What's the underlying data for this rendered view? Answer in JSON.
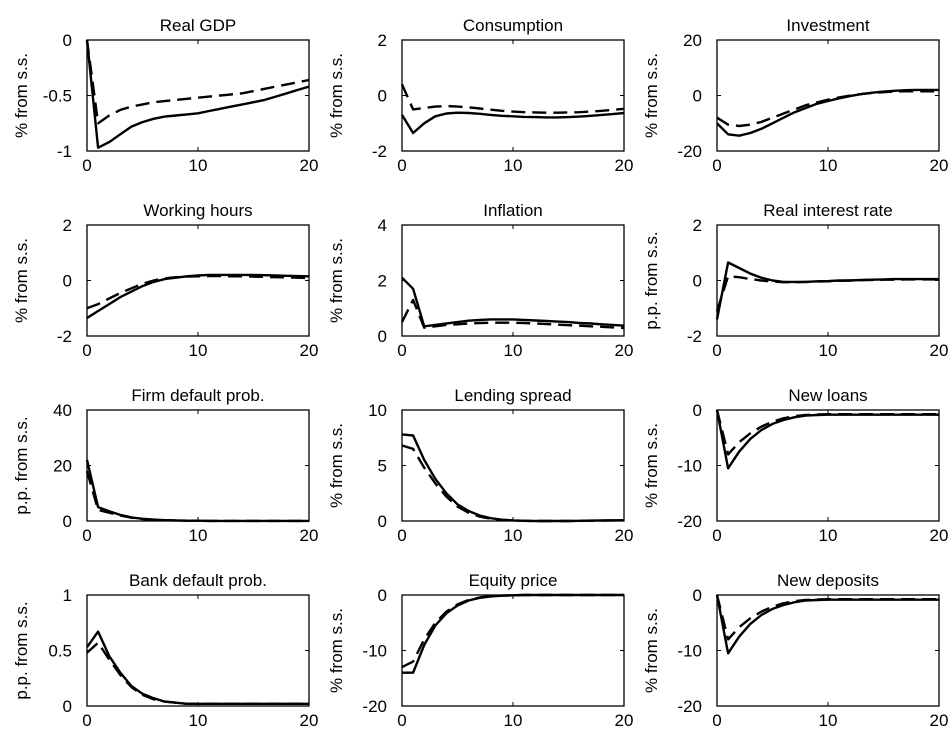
{
  "chart_data": [
    {
      "type": "line",
      "title": "Real GDP",
      "ylabel": "% from s.s.",
      "xlim": [
        0,
        20
      ],
      "ylim": [
        -1,
        0
      ],
      "xticks": [
        0,
        10,
        20
      ],
      "xtick_labels": [
        "0",
        "10",
        "20"
      ],
      "yticks": [
        -1,
        -0.5,
        0
      ],
      "ytick_labels": [
        "-1",
        "-0.5",
        "0"
      ],
      "x": [
        0,
        1,
        2,
        3,
        4,
        5,
        6,
        7,
        8,
        9,
        10,
        11,
        12,
        13,
        14,
        15,
        16,
        17,
        18,
        19,
        20
      ],
      "series": [
        {
          "style": "solid",
          "values": [
            0,
            -0.97,
            -0.92,
            -0.85,
            -0.78,
            -0.74,
            -0.71,
            -0.69,
            -0.68,
            -0.67,
            -0.66,
            -0.64,
            -0.62,
            -0.6,
            -0.58,
            -0.56,
            -0.54,
            -0.51,
            -0.48,
            -0.45,
            -0.42
          ]
        },
        {
          "style": "dashed",
          "values": [
            0,
            -0.75,
            -0.68,
            -0.63,
            -0.6,
            -0.58,
            -0.56,
            -0.55,
            -0.54,
            -0.53,
            -0.52,
            -0.51,
            -0.5,
            -0.49,
            -0.48,
            -0.46,
            -0.44,
            -0.42,
            -0.4,
            -0.38,
            -0.36
          ]
        }
      ]
    },
    {
      "type": "line",
      "title": "Consumption",
      "ylabel": "% from s.s.",
      "xlim": [
        0,
        20
      ],
      "ylim": [
        -2,
        2
      ],
      "xticks": [
        0,
        10,
        20
      ],
      "xtick_labels": [
        "0",
        "10",
        "20"
      ],
      "yticks": [
        -2,
        0,
        2
      ],
      "ytick_labels": [
        "-2",
        "0",
        "2"
      ],
      "x": [
        0,
        1,
        2,
        3,
        4,
        5,
        6,
        7,
        8,
        9,
        10,
        11,
        12,
        13,
        14,
        15,
        16,
        17,
        18,
        19,
        20
      ],
      "series": [
        {
          "style": "solid",
          "values": [
            -0.7,
            -1.35,
            -1.0,
            -0.75,
            -0.65,
            -0.62,
            -0.63,
            -0.66,
            -0.7,
            -0.73,
            -0.75,
            -0.77,
            -0.78,
            -0.79,
            -0.79,
            -0.78,
            -0.76,
            -0.73,
            -0.7,
            -0.67,
            -0.63
          ]
        },
        {
          "style": "dashed",
          "values": [
            0.4,
            -0.5,
            -0.45,
            -0.4,
            -0.38,
            -0.4,
            -0.43,
            -0.47,
            -0.51,
            -0.55,
            -0.58,
            -0.6,
            -0.61,
            -0.62,
            -0.62,
            -0.61,
            -0.6,
            -0.58,
            -0.55,
            -0.52,
            -0.48
          ]
        }
      ]
    },
    {
      "type": "line",
      "title": "Investment",
      "ylabel": "% from s.s.",
      "xlim": [
        0,
        20
      ],
      "ylim": [
        -20,
        20
      ],
      "xticks": [
        0,
        10,
        20
      ],
      "xtick_labels": [
        "0",
        "10",
        "20"
      ],
      "yticks": [
        -20,
        0,
        20
      ],
      "ytick_labels": [
        "-20",
        "0",
        "20"
      ],
      "x": [
        0,
        1,
        2,
        3,
        4,
        5,
        6,
        7,
        8,
        9,
        10,
        11,
        12,
        13,
        14,
        15,
        16,
        17,
        18,
        19,
        20
      ],
      "series": [
        {
          "style": "solid",
          "values": [
            -10,
            -14,
            -14.5,
            -13.5,
            -12,
            -10,
            -8,
            -6,
            -4.5,
            -3,
            -2,
            -1,
            -0.2,
            0.5,
            1,
            1.4,
            1.7,
            1.9,
            2.0,
            2.0,
            2.0
          ]
        },
        {
          "style": "dashed",
          "values": [
            -8,
            -10.5,
            -11,
            -10.5,
            -9.5,
            -8,
            -6.5,
            -5,
            -3.5,
            -2.5,
            -1.5,
            -0.7,
            0,
            0.5,
            0.9,
            1.2,
            1.4,
            1.5,
            1.5,
            1.5,
            1.5
          ]
        }
      ]
    },
    {
      "type": "line",
      "title": "Working hours",
      "ylabel": "% from s.s.",
      "xlim": [
        0,
        20
      ],
      "ylim": [
        -2,
        2
      ],
      "xticks": [
        0,
        10,
        20
      ],
      "xtick_labels": [
        "0",
        "10",
        "20"
      ],
      "yticks": [
        -2,
        0,
        2
      ],
      "ytick_labels": [
        "-2",
        "0",
        "2"
      ],
      "x": [
        0,
        1,
        2,
        3,
        4,
        5,
        6,
        7,
        8,
        9,
        10,
        11,
        12,
        13,
        14,
        15,
        16,
        17,
        18,
        19,
        20
      ],
      "series": [
        {
          "style": "solid",
          "values": [
            -1.35,
            -1.1,
            -0.85,
            -0.6,
            -0.4,
            -0.2,
            -0.05,
            0.05,
            0.1,
            0.15,
            0.18,
            0.2,
            0.2,
            0.2,
            0.2,
            0.2,
            0.19,
            0.18,
            0.17,
            0.16,
            0.15
          ]
        },
        {
          "style": "dashed",
          "values": [
            -1.0,
            -0.85,
            -0.65,
            -0.45,
            -0.28,
            -0.12,
            0,
            0.08,
            0.12,
            0.14,
            0.15,
            0.16,
            0.16,
            0.15,
            0.15,
            0.14,
            0.13,
            0.12,
            0.11,
            0.1,
            0.09
          ]
        }
      ]
    },
    {
      "type": "line",
      "title": "Inflation",
      "ylabel": "% from s.s.",
      "xlim": [
        0,
        20
      ],
      "ylim": [
        0,
        4
      ],
      "xticks": [
        0,
        10,
        20
      ],
      "xtick_labels": [
        "0",
        "10",
        "20"
      ],
      "yticks": [
        0,
        2,
        4
      ],
      "ytick_labels": [
        "0",
        "2",
        "4"
      ],
      "x": [
        0,
        1,
        2,
        3,
        4,
        5,
        6,
        7,
        8,
        9,
        10,
        11,
        12,
        13,
        14,
        15,
        16,
        17,
        18,
        19,
        20
      ],
      "series": [
        {
          "style": "solid",
          "values": [
            2.1,
            1.7,
            0.35,
            0.4,
            0.45,
            0.5,
            0.55,
            0.58,
            0.6,
            0.6,
            0.6,
            0.58,
            0.56,
            0.54,
            0.52,
            0.5,
            0.47,
            0.45,
            0.42,
            0.4,
            0.37
          ]
        },
        {
          "style": "dashed",
          "values": [
            0.5,
            1.3,
            0.3,
            0.35,
            0.4,
            0.42,
            0.45,
            0.47,
            0.48,
            0.48,
            0.48,
            0.47,
            0.45,
            0.43,
            0.41,
            0.39,
            0.37,
            0.35,
            0.33,
            0.31,
            0.29
          ]
        }
      ]
    },
    {
      "type": "line",
      "title": "Real interest rate",
      "ylabel": "p.p. from s.s.",
      "xlim": [
        0,
        20
      ],
      "ylim": [
        -2,
        2
      ],
      "xticks": [
        0,
        10,
        20
      ],
      "xtick_labels": [
        "0",
        "10",
        "20"
      ],
      "yticks": [
        -2,
        0,
        2
      ],
      "ytick_labels": [
        "-2",
        "0",
        "2"
      ],
      "x": [
        0,
        1,
        2,
        3,
        4,
        5,
        6,
        7,
        8,
        9,
        10,
        11,
        12,
        13,
        14,
        15,
        16,
        17,
        18,
        19,
        20
      ],
      "series": [
        {
          "style": "solid",
          "values": [
            -1.4,
            0.65,
            0.45,
            0.25,
            0.1,
            0,
            -0.05,
            -0.05,
            -0.05,
            -0.03,
            -0.02,
            0,
            0,
            0.02,
            0.03,
            0.04,
            0.05,
            0.05,
            0.05,
            0.05,
            0.05
          ]
        },
        {
          "style": "dashed",
          "values": [
            -1.1,
            0.15,
            0.12,
            0.05,
            0,
            -0.04,
            -0.06,
            -0.06,
            -0.05,
            -0.04,
            -0.03,
            -0.01,
            0,
            0.01,
            0.02,
            0.03,
            0.03,
            0.04,
            0.04,
            0.04,
            0.04
          ]
        }
      ]
    },
    {
      "type": "line",
      "title": "Firm default prob.",
      "ylabel": "p.p. from s.s.",
      "xlim": [
        0,
        20
      ],
      "ylim": [
        0,
        40
      ],
      "xticks": [
        0,
        10,
        20
      ],
      "xtick_labels": [
        "0",
        "10",
        "20"
      ],
      "yticks": [
        0,
        20,
        40
      ],
      "ytick_labels": [
        "0",
        "20",
        "40"
      ],
      "x": [
        0,
        1,
        2,
        3,
        4,
        5,
        6,
        7,
        8,
        9,
        10,
        11,
        12,
        13,
        14,
        15,
        16,
        17,
        18,
        19,
        20
      ],
      "series": [
        {
          "style": "solid",
          "values": [
            22,
            5,
            3.5,
            2.2,
            1.3,
            0.8,
            0.5,
            0.3,
            0.2,
            0.1,
            0.1,
            0.05,
            0.03,
            0.02,
            0.02,
            0.02,
            0.02,
            0.02,
            0.02,
            0.02,
            0.02
          ]
        },
        {
          "style": "dashed",
          "values": [
            18,
            4,
            3,
            2,
            1.2,
            0.7,
            0.45,
            0.3,
            0.2,
            0.1,
            0.1,
            0.05,
            0.03,
            0.02,
            0.02,
            0.02,
            0.02,
            0.02,
            0.02,
            0.02,
            0.02
          ]
        }
      ]
    },
    {
      "type": "line",
      "title": "Lending spread",
      "ylabel": "% from s.s.",
      "xlim": [
        0,
        20
      ],
      "ylim": [
        0,
        10
      ],
      "xticks": [
        0,
        10,
        20
      ],
      "xtick_labels": [
        "0",
        "10",
        "20"
      ],
      "yticks": [
        0,
        5,
        10
      ],
      "ytick_labels": [
        "0",
        "5",
        "10"
      ],
      "x": [
        0,
        1,
        2,
        3,
        4,
        5,
        6,
        7,
        8,
        9,
        10,
        11,
        12,
        13,
        14,
        15,
        16,
        17,
        18,
        19,
        20
      ],
      "series": [
        {
          "style": "solid",
          "values": [
            7.8,
            7.7,
            5.5,
            3.8,
            2.5,
            1.5,
            0.9,
            0.5,
            0.25,
            0.12,
            0.05,
            0.02,
            0,
            0,
            0,
            0,
            0.02,
            0.04,
            0.05,
            0.06,
            0.07
          ]
        },
        {
          "style": "dashed",
          "values": [
            6.8,
            6.5,
            4.8,
            3.4,
            2.2,
            1.3,
            0.75,
            0.4,
            0.2,
            0.1,
            0.05,
            0.02,
            0,
            0,
            0,
            0,
            0.02,
            0.03,
            0.04,
            0.05,
            0.06
          ]
        }
      ]
    },
    {
      "type": "line",
      "title": "New loans",
      "ylabel": "% from s.s.",
      "xlim": [
        0,
        20
      ],
      "ylim": [
        -20,
        0
      ],
      "xticks": [
        0,
        10,
        20
      ],
      "xtick_labels": [
        "0",
        "10",
        "20"
      ],
      "yticks": [
        -20,
        -10,
        0
      ],
      "ytick_labels": [
        "-20",
        "-10",
        "0"
      ],
      "x": [
        0,
        1,
        2,
        3,
        4,
        5,
        6,
        7,
        8,
        9,
        10,
        11,
        12,
        13,
        14,
        15,
        16,
        17,
        18,
        19,
        20
      ],
      "series": [
        {
          "style": "solid",
          "values": [
            0,
            -10.5,
            -7.5,
            -5.2,
            -3.6,
            -2.5,
            -1.8,
            -1.3,
            -1.0,
            -0.9,
            -0.85,
            -0.85,
            -0.85,
            -0.85,
            -0.85,
            -0.85,
            -0.85,
            -0.85,
            -0.85,
            -0.85,
            -0.85
          ]
        },
        {
          "style": "dashed",
          "values": [
            0,
            -8,
            -5.8,
            -4.2,
            -3.0,
            -2.1,
            -1.5,
            -1.1,
            -0.9,
            -0.8,
            -0.75,
            -0.75,
            -0.75,
            -0.75,
            -0.75,
            -0.75,
            -0.75,
            -0.75,
            -0.75,
            -0.75,
            -0.75
          ]
        }
      ]
    },
    {
      "type": "line",
      "title": "Bank default prob.",
      "ylabel": "p.p. from s.s.",
      "xlim": [
        0,
        20
      ],
      "ylim": [
        0,
        1
      ],
      "xticks": [
        0,
        10,
        20
      ],
      "xtick_labels": [
        "0",
        "10",
        "20"
      ],
      "yticks": [
        0,
        0.5,
        1
      ],
      "ytick_labels": [
        "0",
        "0.5",
        "1"
      ],
      "x": [
        0,
        1,
        2,
        3,
        4,
        5,
        6,
        7,
        8,
        9,
        10,
        11,
        12,
        13,
        14,
        15,
        16,
        17,
        18,
        19,
        20
      ],
      "series": [
        {
          "style": "solid",
          "values": [
            0.53,
            0.67,
            0.45,
            0.3,
            0.18,
            0.11,
            0.07,
            0.04,
            0.03,
            0.02,
            0.02,
            0.02,
            0.02,
            0.02,
            0.02,
            0.02,
            0.02,
            0.02,
            0.02,
            0.02,
            0.02
          ]
        },
        {
          "style": "dashed",
          "values": [
            0.48,
            0.57,
            0.42,
            0.28,
            0.17,
            0.1,
            0.06,
            0.04,
            0.03,
            0.02,
            0.02,
            0.02,
            0.02,
            0.02,
            0.02,
            0.02,
            0.02,
            0.02,
            0.02,
            0.02,
            0.02
          ]
        }
      ]
    },
    {
      "type": "line",
      "title": "Equity price",
      "ylabel": "% from s.s.",
      "xlim": [
        0,
        20
      ],
      "ylim": [
        -20,
        0
      ],
      "xticks": [
        0,
        10,
        20
      ],
      "xtick_labels": [
        "0",
        "10",
        "20"
      ],
      "yticks": [
        -20,
        -10,
        0
      ],
      "ytick_labels": [
        "-20",
        "-10",
        "0"
      ],
      "x": [
        0,
        1,
        2,
        3,
        4,
        5,
        6,
        7,
        8,
        9,
        10,
        11,
        12,
        13,
        14,
        15,
        16,
        17,
        18,
        19,
        20
      ],
      "series": [
        {
          "style": "solid",
          "values": [
            -14,
            -14,
            -9,
            -5.5,
            -3.3,
            -1.9,
            -1.0,
            -0.5,
            -0.25,
            -0.12,
            -0.05,
            0,
            0,
            0,
            0,
            0,
            0,
            0,
            0,
            0,
            0
          ]
        },
        {
          "style": "dashed",
          "values": [
            -13,
            -12,
            -8,
            -5,
            -3,
            -1.7,
            -0.9,
            -0.45,
            -0.2,
            -0.1,
            -0.05,
            0,
            0,
            0,
            0,
            0,
            0,
            0,
            0,
            0,
            0
          ]
        }
      ]
    },
    {
      "type": "line",
      "title": "New deposits",
      "ylabel": "% from s.s.",
      "xlim": [
        0,
        20
      ],
      "ylim": [
        -20,
        0
      ],
      "xticks": [
        0,
        10,
        20
      ],
      "xtick_labels": [
        "0",
        "10",
        "20"
      ],
      "yticks": [
        -20,
        -10,
        0
      ],
      "ytick_labels": [
        "-20",
        "-10",
        "0"
      ],
      "x": [
        0,
        1,
        2,
        3,
        4,
        5,
        6,
        7,
        8,
        9,
        10,
        11,
        12,
        13,
        14,
        15,
        16,
        17,
        18,
        19,
        20
      ],
      "series": [
        {
          "style": "solid",
          "values": [
            0,
            -10.5,
            -7.5,
            -5.2,
            -3.6,
            -2.5,
            -1.8,
            -1.3,
            -1.0,
            -0.9,
            -0.85,
            -0.85,
            -0.85,
            -0.85,
            -0.85,
            -0.85,
            -0.85,
            -0.85,
            -0.85,
            -0.85,
            -0.85
          ]
        },
        {
          "style": "dashed",
          "values": [
            0,
            -8,
            -5.8,
            -4.2,
            -3.0,
            -2.1,
            -1.5,
            -1.1,
            -0.9,
            -0.8,
            -0.75,
            -0.75,
            -0.75,
            -0.75,
            -0.75,
            -0.75,
            -0.75,
            -0.75,
            -0.75,
            -0.75,
            -0.75
          ]
        }
      ]
    }
  ]
}
